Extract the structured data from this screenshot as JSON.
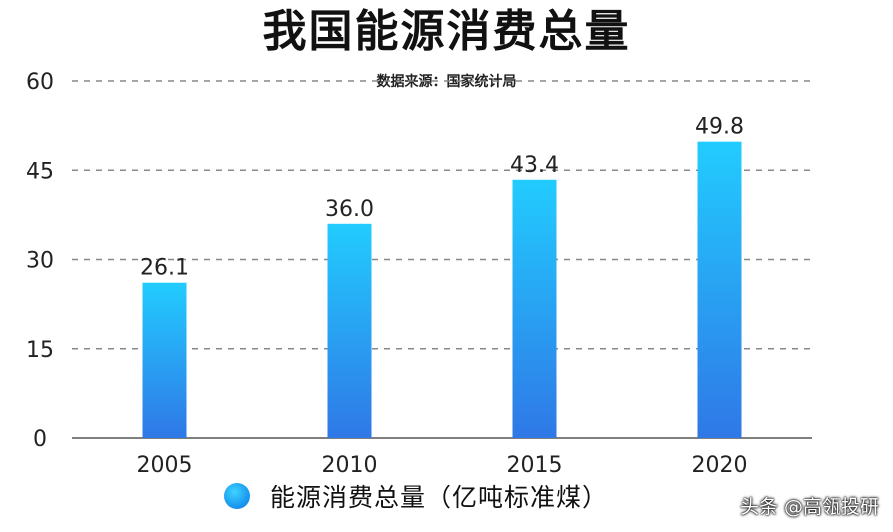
{
  "watermark": "头条 @高瓴投研",
  "colors": {
    "bar_top": "#22ccff",
    "bar_bottom": "#2f78e6",
    "grid": "#888888",
    "axis": "#555555",
    "text": "#222222"
  },
  "chart_data": {
    "type": "bar",
    "title": "我国能源消费总量",
    "subtitle": "数据来源：国家统计局",
    "categories": [
      "2005",
      "2010",
      "2015",
      "2020"
    ],
    "series": [
      {
        "name": "能源消费总量（亿吨标准煤）",
        "values": [
          26.1,
          36.0,
          43.4,
          49.8
        ]
      }
    ],
    "data_labels": [
      "26.1",
      "36.0",
      "43.4",
      "49.8"
    ],
    "ylim": [
      0,
      60
    ],
    "yticks": [
      0,
      15,
      30,
      45,
      60
    ],
    "ytick_labels": [
      "0",
      "15",
      "30",
      "45",
      "60"
    ],
    "grid": true,
    "grid_style": "dashed",
    "legend_position": "bottom"
  }
}
